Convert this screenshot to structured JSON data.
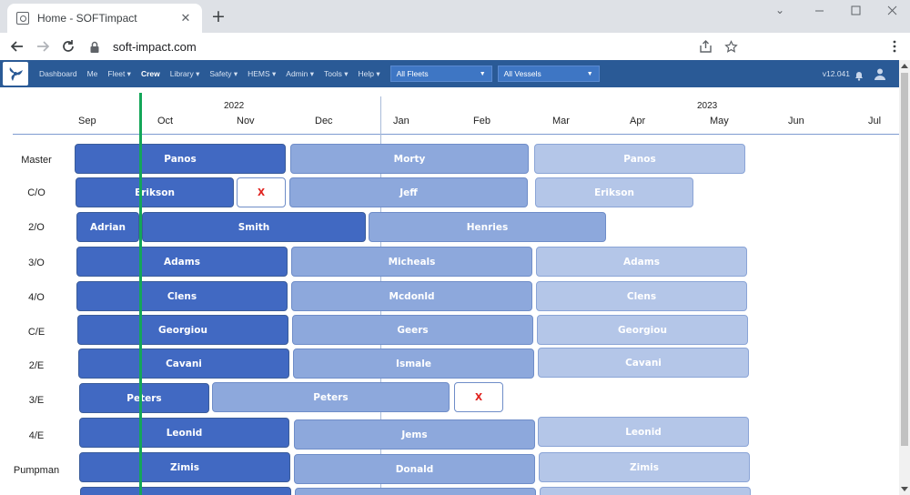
{
  "browser": {
    "tab_title": "Home - SOFTimpact",
    "url": "soft-impact.com"
  },
  "nav": {
    "items": [
      "Dashboard",
      "Me",
      "Fleet ▾",
      "Crew",
      "Library ▾",
      "Safety ▾",
      "HEMS ▾",
      "Admin ▾",
      "Tools ▾",
      "Help ▾"
    ],
    "fleet_select": "All Fleets",
    "vessel_select": "All Vessels",
    "version": "v12.041"
  },
  "timeline": {
    "years": [
      "2022",
      "2023"
    ],
    "months": [
      "Sep",
      "Oct",
      "Nov",
      "Dec",
      "Jan",
      "Feb",
      "Mar",
      "Apr",
      "May",
      "Jun",
      "Jul"
    ],
    "gap_label": "X"
  },
  "rows": [
    {
      "rank": "Master",
      "segments": [
        "Panos",
        "Morty",
        "Panos"
      ]
    },
    {
      "rank": "C/O",
      "segments": [
        "Erikson",
        "X",
        "Jeff",
        "Erikson"
      ]
    },
    {
      "rank": "2/O",
      "segments": [
        "Adrian",
        "Smith",
        "Henries"
      ]
    },
    {
      "rank": "3/O",
      "segments": [
        "Adams",
        "Micheals",
        "Adams"
      ]
    },
    {
      "rank": "4/O",
      "segments": [
        "Clens",
        "Mcdonld",
        "Clens"
      ]
    },
    {
      "rank": "C/E",
      "segments": [
        "Georgiou",
        "Geers",
        "Georgiou"
      ]
    },
    {
      "rank": "2/E",
      "segments": [
        "Cavani",
        "Ismale",
        "Cavani"
      ]
    },
    {
      "rank": "3/E",
      "segments": [
        "Peters",
        "Peters",
        "X"
      ]
    },
    {
      "rank": "4/E",
      "segments": [
        "Leonid",
        "Jems",
        "Leonid"
      ]
    },
    {
      "rank": "Pumpman",
      "segments": [
        "Zimis",
        "Donald",
        "Zimis"
      ]
    }
  ],
  "colors": {
    "current": "#4169c2",
    "next": "#8da8dc",
    "future": "#b4c6e8",
    "today_line": "#14a659",
    "navbar": "#2a5a96"
  }
}
